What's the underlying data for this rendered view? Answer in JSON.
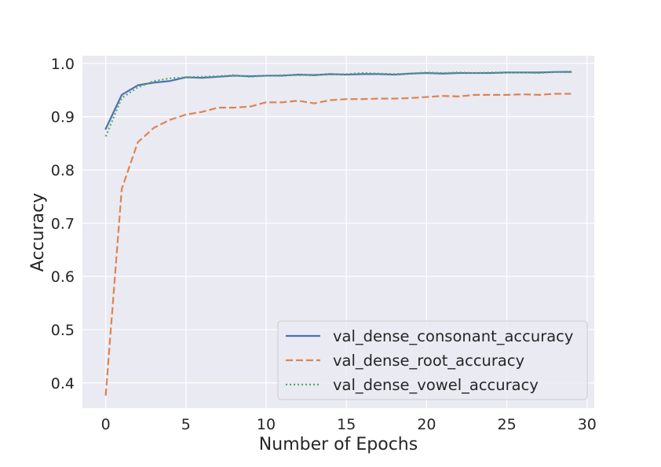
{
  "chart_data": {
    "type": "line",
    "title": "",
    "xlabel": "Number of Epochs",
    "ylabel": "Accuracy",
    "xlim": [
      -1.45,
      30.45
    ],
    "ylim": [
      0.3525,
      1.0145
    ],
    "xticks": [
      0,
      5,
      10,
      15,
      20,
      25,
      30
    ],
    "xtick_labels": [
      "0",
      "5",
      "10",
      "15",
      "20",
      "25",
      "30"
    ],
    "yticks": [
      0.4,
      0.5,
      0.6,
      0.7,
      0.8,
      0.9,
      1.0
    ],
    "ytick_labels": [
      "0.4",
      "0.5",
      "0.6",
      "0.7",
      "0.8",
      "0.9",
      "1.0"
    ],
    "grid": true,
    "legend_position": "lower-right",
    "x": [
      0,
      1,
      2,
      3,
      4,
      5,
      6,
      7,
      8,
      9,
      10,
      11,
      12,
      13,
      14,
      15,
      16,
      17,
      18,
      19,
      20,
      21,
      22,
      23,
      24,
      25,
      26,
      27,
      28,
      29
    ],
    "series": [
      {
        "name": "val_dense_consonant_accuracy",
        "color": "#4c72b0",
        "style": "solid",
        "values": [
          0.877,
          0.941,
          0.959,
          0.964,
          0.967,
          0.974,
          0.973,
          0.975,
          0.977,
          0.976,
          0.977,
          0.977,
          0.979,
          0.978,
          0.98,
          0.979,
          0.98,
          0.98,
          0.979,
          0.981,
          0.982,
          0.981,
          0.982,
          0.982,
          0.982,
          0.983,
          0.983,
          0.983,
          0.984,
          0.984
        ]
      },
      {
        "name": "val_dense_root_accuracy",
        "color": "#dd8452",
        "style": "dashed",
        "values": [
          0.376,
          0.764,
          0.852,
          0.879,
          0.894,
          0.904,
          0.909,
          0.917,
          0.917,
          0.919,
          0.927,
          0.927,
          0.93,
          0.925,
          0.931,
          0.933,
          0.933,
          0.934,
          0.934,
          0.935,
          0.937,
          0.939,
          0.938,
          0.941,
          0.941,
          0.941,
          0.942,
          0.941,
          0.943,
          0.943
        ]
      },
      {
        "name": "val_dense_vowel_accuracy",
        "color": "#55a868",
        "style": "dotted",
        "values": [
          0.863,
          0.935,
          0.955,
          0.967,
          0.972,
          0.974,
          0.975,
          0.976,
          0.978,
          0.975,
          0.977,
          0.978,
          0.978,
          0.979,
          0.979,
          0.98,
          0.982,
          0.981,
          0.98,
          0.981,
          0.983,
          0.982,
          0.983,
          0.982,
          0.983,
          0.983,
          0.983,
          0.982,
          0.984,
          0.985
        ]
      }
    ]
  }
}
